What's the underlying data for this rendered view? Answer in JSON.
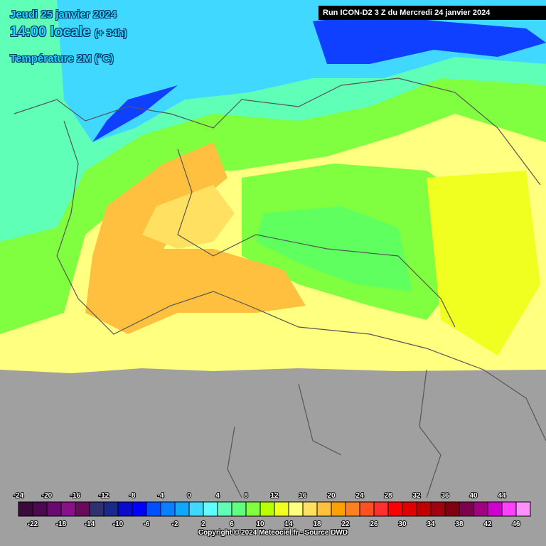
{
  "header": {
    "date": "Jeudi 25 janvier 2024",
    "time": "14:00 locale",
    "offset": "(+ 34h)",
    "variable": "Température 2M (°C)",
    "run": "Run ICON-D2 3 Z du Mercredi 24 janvier 2024"
  },
  "legend": {
    "labels": [
      -24,
      -22,
      -20,
      -18,
      -16,
      -14,
      -12,
      -10,
      -8,
      -6,
      -4,
      -2,
      0,
      2,
      4,
      6,
      8,
      10,
      12,
      14,
      16,
      18,
      20,
      22,
      24,
      26,
      28,
      30,
      32,
      34,
      36,
      38,
      40,
      42,
      44,
      46
    ],
    "colors": [
      "#3a0a3a",
      "#4b0a50",
      "#6a0a70",
      "#8a108a",
      "#6a0a5a",
      "#303070",
      "#1a2a8a",
      "#0a0acc",
      "#0000ff",
      "#0050ff",
      "#0a80ff",
      "#10a8ff",
      "#40d8ff",
      "#60ffff",
      "#60ffb8",
      "#60ff80",
      "#80ff40",
      "#b8ff00",
      "#f0ff20",
      "#ffff80",
      "#ffe060",
      "#ffc040",
      "#ffa000",
      "#ff8020",
      "#ff5020",
      "#ff3030",
      "#ff0000",
      "#e00000",
      "#c00000",
      "#a00010",
      "#800010",
      "#800050",
      "#a00080",
      "#d000d0",
      "#ff40ff",
      "#ff90ff"
    ]
  },
  "footer": "Copyright © 2024 Meteociel.fr - Source DWD"
}
